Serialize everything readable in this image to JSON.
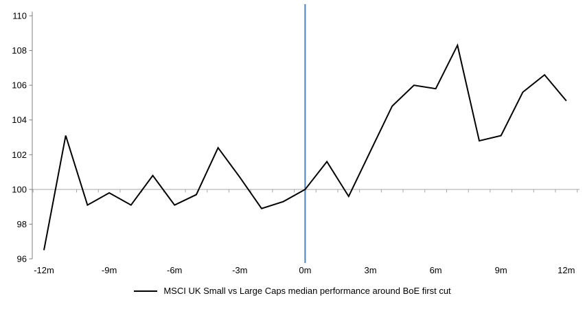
{
  "chart": {
    "legend_label": "MSCI UK Small vs Large Caps median performance around BoE first cut"
  },
  "chart_data": {
    "type": "line",
    "title": "",
    "x": [
      -12,
      -11,
      -10,
      -9,
      -8,
      -7,
      -6,
      -5,
      -4,
      -3,
      -2,
      -1,
      0,
      1,
      2,
      3,
      4,
      5,
      6,
      7,
      8,
      9,
      10,
      11,
      12
    ],
    "series": [
      {
        "name": "MSCI UK Small vs Large Caps median performance around BoE first cut",
        "values": [
          96.5,
          103.1,
          99.1,
          99.8,
          99.1,
          100.8,
          99.1,
          99.7,
          102.4,
          100.7,
          98.9,
          99.3,
          100.0,
          101.6,
          99.6,
          102.2,
          104.8,
          106.0,
          105.8,
          108.3,
          102.8,
          103.1,
          105.6,
          106.6,
          105.1
        ]
      }
    ],
    "xtick_months": [
      -12,
      -9,
      -6,
      -3,
      0,
      3,
      6,
      9,
      12
    ],
    "xtick_labels": [
      "-12m",
      "-9m",
      "-6m",
      "-3m",
      "0m",
      "3m",
      "6m",
      "9m",
      "12m"
    ],
    "yticks": [
      110,
      108,
      106,
      104,
      102,
      100,
      98,
      96
    ],
    "ylim": [
      96,
      110
    ],
    "baseline_y": 100,
    "event_line_x": 0,
    "legend_position": "bottom",
    "grid": "single horizontal line at baseline 100 with category-boundary tick marks",
    "colors": {
      "series": "#000000",
      "event_line": "#4f81bd",
      "axis": "#7f7f7f",
      "baseline": "#a6a6a6"
    }
  }
}
